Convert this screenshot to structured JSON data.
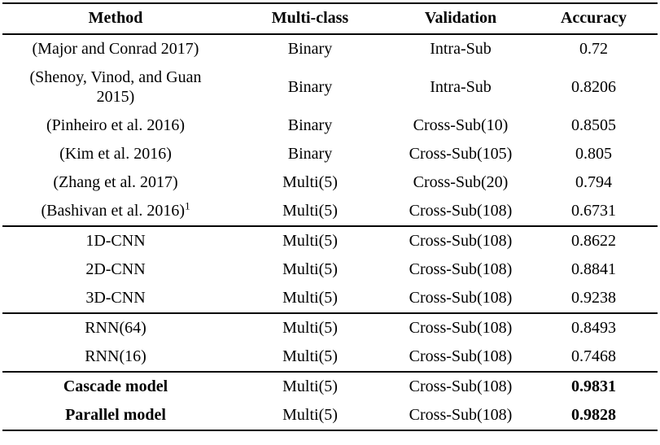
{
  "table": {
    "columns": [
      "Method",
      "Multi-class",
      "Validation",
      "Accuracy"
    ],
    "rows": [
      {
        "method": "(Major and Conrad 2017)",
        "multi_class": "Binary",
        "validation": "Intra-Sub",
        "accuracy": "0.72",
        "bold": false,
        "section_start": false
      },
      {
        "method": "(Shenoy, Vinod, and Guan 2015)",
        "multi_class": "Binary",
        "validation": "Intra-Sub",
        "accuracy": "0.8206",
        "bold": false,
        "section_start": false
      },
      {
        "method": "(Pinheiro et al. 2016)",
        "multi_class": "Binary",
        "validation": "Cross-Sub(10)",
        "accuracy": "0.8505",
        "bold": false,
        "section_start": false
      },
      {
        "method": "(Kim et al. 2016)",
        "multi_class": "Binary",
        "validation": "Cross-Sub(105)",
        "accuracy": "0.805",
        "bold": false,
        "section_start": false
      },
      {
        "method": "(Zhang et al. 2017)",
        "multi_class": "Multi(5)",
        "validation": "Cross-Sub(20)",
        "accuracy": "0.794",
        "bold": false,
        "section_start": false
      },
      {
        "method": "(Bashivan et al. 2016)",
        "method_sup": "1",
        "multi_class": "Multi(5)",
        "validation": "Cross-Sub(108)",
        "accuracy": "0.6731",
        "bold": false,
        "section_start": false
      },
      {
        "method": "1D-CNN",
        "multi_class": "Multi(5)",
        "validation": "Cross-Sub(108)",
        "accuracy": "0.8622",
        "bold": false,
        "section_start": true
      },
      {
        "method": "2D-CNN",
        "multi_class": "Multi(5)",
        "validation": "Cross-Sub(108)",
        "accuracy": "0.8841",
        "bold": false,
        "section_start": false
      },
      {
        "method": "3D-CNN",
        "multi_class": "Multi(5)",
        "validation": "Cross-Sub(108)",
        "accuracy": "0.9238",
        "bold": false,
        "section_start": false
      },
      {
        "method": "RNN(64)",
        "multi_class": "Multi(5)",
        "validation": "Cross-Sub(108)",
        "accuracy": "0.8493",
        "bold": false,
        "section_start": true
      },
      {
        "method": "RNN(16)",
        "multi_class": "Multi(5)",
        "validation": "Cross-Sub(108)",
        "accuracy": "0.7468",
        "bold": false,
        "section_start": false
      },
      {
        "method": "Cascade model",
        "multi_class": "Multi(5)",
        "validation": "Cross-Sub(108)",
        "accuracy": "0.9831",
        "bold": true,
        "section_start": true
      },
      {
        "method": "Parallel model",
        "multi_class": "Multi(5)",
        "validation": "Cross-Sub(108)",
        "accuracy": "0.9828",
        "bold": false,
        "section_start": false
      }
    ]
  }
}
